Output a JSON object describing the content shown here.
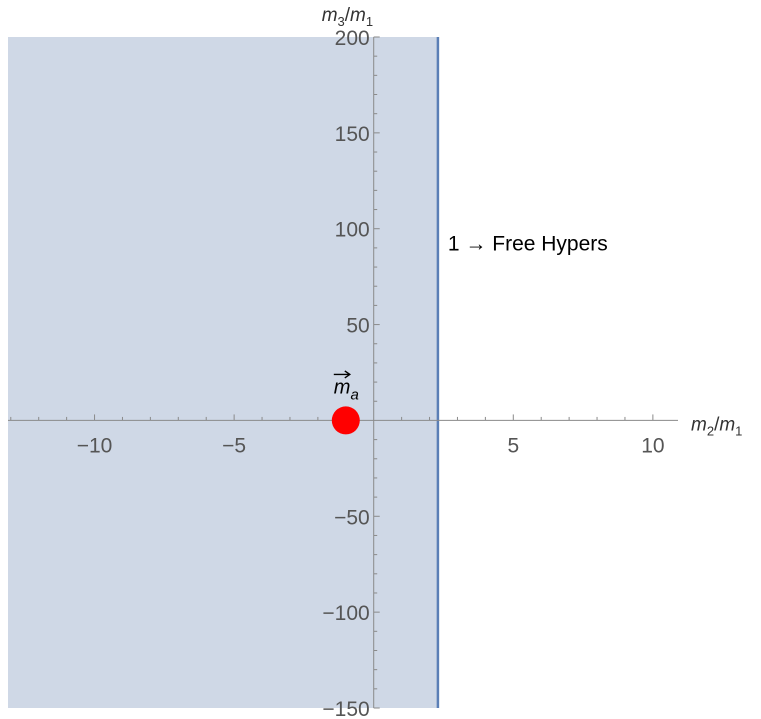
{
  "chart_data": {
    "type": "scatter",
    "xlabel": {
      "base": "m",
      "sub": "2",
      "sep": "/",
      "base2": "m",
      "sub2": "1"
    },
    "ylabel": {
      "base": "m",
      "sub": "3",
      "sep": "/",
      "base2": "m",
      "sub2": "1"
    },
    "xlim": [
      -13.1,
      10.9
    ],
    "ylim": [
      -150,
      200
    ],
    "xticks": [
      -10,
      -5,
      5,
      10
    ],
    "xtick_labels": [
      "−10",
      "−5",
      "5",
      "10"
    ],
    "yticks": [
      -150,
      -100,
      -50,
      50,
      100,
      150,
      200
    ],
    "ytick_labels": [
      "−150",
      "−100",
      "−50",
      "50",
      "100",
      "150",
      "200"
    ],
    "region": {
      "x_max": 2.3,
      "color": "#cfd8e6",
      "boundary_color": "#5b7fb6"
    },
    "annotation": "1 → Free Hypers",
    "points": [
      {
        "x": -1,
        "y": 0,
        "label": "m",
        "label_sub": "a",
        "color": "#ff0000"
      }
    ],
    "grid": false
  }
}
